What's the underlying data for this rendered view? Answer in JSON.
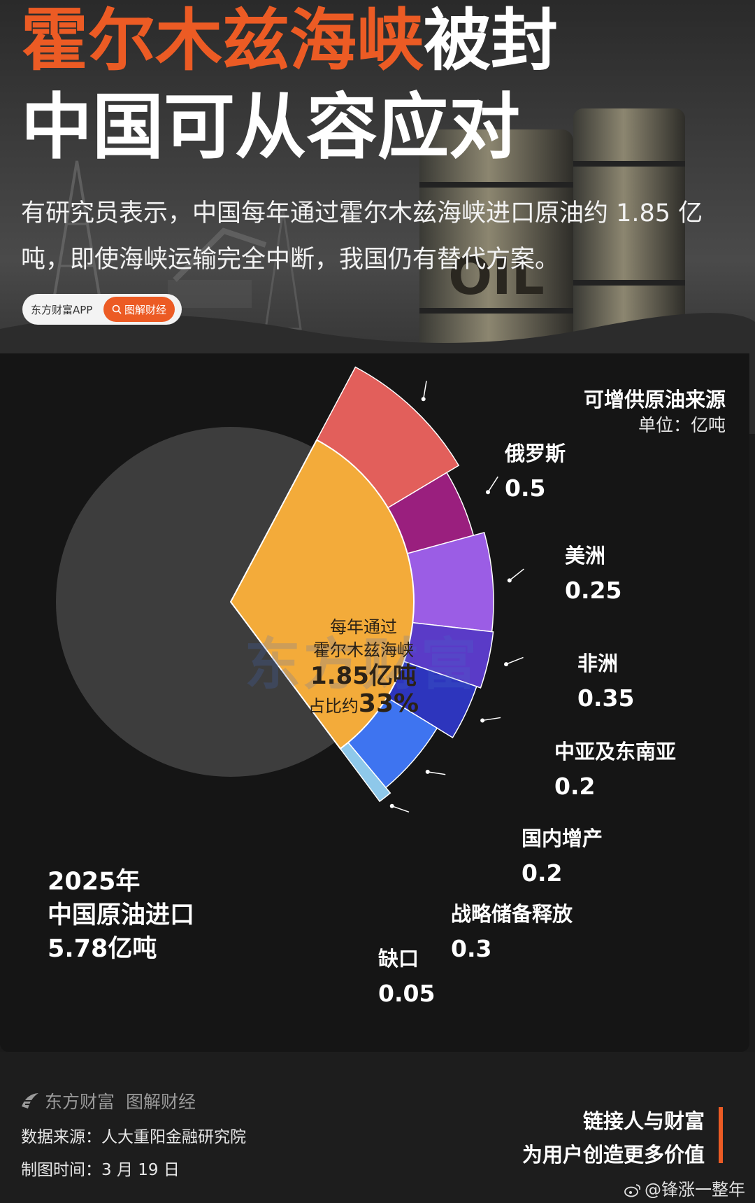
{
  "header": {
    "title_orange": "霍尔木兹海峡",
    "title_white": "被封",
    "title_line2": "中国可从容应对",
    "subtitle": "有研究员表示，中国每年通过霍尔木兹海峡进口原油约 1.85 亿吨，即使海峡运输完全中断，我国仍有替代方案。",
    "brand_pill": "东方财富APP",
    "brand_tag": "图解财经",
    "barrel_text": "OIL"
  },
  "panel": {
    "title": "可增供原油来源",
    "unit": "单位：亿吨"
  },
  "center": {
    "line1": "每年通过",
    "line2": "霍尔木兹海峡",
    "line3": "1.85亿吨",
    "line4_prefix": "占比约",
    "line4_value": "33%"
  },
  "total": {
    "year": "2025年",
    "label": "中国原油进口",
    "value": "5.78亿吨"
  },
  "watermark": "东方财富",
  "chart_data": {
    "type": "pie",
    "total_imports": 5.78,
    "hormuz_share": 1.85,
    "hormuz_percent": 33,
    "segments": [
      {
        "name": "俄罗斯",
        "value": 0.5,
        "color": "#e25f5b"
      },
      {
        "name": "美洲",
        "value": 0.25,
        "color": "#9a1f7e"
      },
      {
        "name": "非洲",
        "value": 0.35,
        "color": "#9b5de5"
      },
      {
        "name": "中亚及东南亚",
        "value": 0.2,
        "color": "#5a3bc7"
      },
      {
        "name": "国内增产",
        "value": 0.2,
        "color": "#2d35bd"
      },
      {
        "name": "战略储备释放",
        "value": 0.3,
        "color": "#3e74f0"
      },
      {
        "name": "缺口",
        "value": 0.05,
        "color": "#8ec8ea"
      }
    ],
    "hormuz_color": "#f3ab3a",
    "rest_color": "#3d3d3d"
  },
  "footer": {
    "brand": "东方财富",
    "section": "图解财经",
    "source": "数据来源：人大重阳金融研究院",
    "date": "制图时间：3 月 19 日",
    "slogan1": "链接人与财富",
    "slogan2": "为用户创造更多价值",
    "weibo": "@锋涨一整年"
  }
}
